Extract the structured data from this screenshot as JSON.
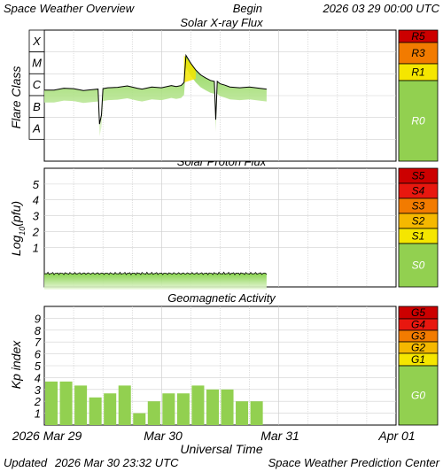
{
  "header": {
    "title": "Space Weather Overview",
    "begin_label": "Begin",
    "begin_value": "2026 03 29 00:00 UTC"
  },
  "footer": {
    "updated_label": "Updated",
    "updated_value": "2026 Mar 30 23:32 UTC",
    "credit": "Space Weather Prediction Center"
  },
  "colors": {
    "extreme": "#cc0000",
    "severe": "#e8170f",
    "strong": "#f27b00",
    "moderate": "#f5b800",
    "minor": "#f5e600",
    "quiet": "#92d050"
  },
  "chart_data": [
    {
      "type": "line",
      "title": "Solar X-ray Flux",
      "ylabel": "Flare Class",
      "y_labels": [
        "X",
        "M",
        "C",
        "B",
        "A"
      ],
      "y_scale": "log",
      "ylim": [
        1e-09,
        0.001
      ],
      "x_time_range": [
        "2026-03-29 00:00",
        "2026-04-01 00:00"
      ],
      "series": [
        {
          "x_hours": [
            0,
            2,
            4,
            6,
            8,
            10,
            11,
            11.3,
            11.7,
            12,
            13,
            15,
            17,
            19,
            20,
            22,
            24,
            26,
            27,
            28,
            28.6,
            29,
            30,
            31,
            32,
            33,
            34,
            34.8,
            35.1,
            35.4,
            36,
            37,
            38,
            40,
            42,
            44,
            45.5
          ],
          "values": [
            1.8e-06,
            1.8e-06,
            2.2e-06,
            2.1e-06,
            1.7e-06,
            1.9e-06,
            2e-06,
            5e-08,
            1.3e-07,
            2.1e-06,
            2.3e-06,
            2.4e-06,
            2.8e-06,
            2.2e-06,
            2e-06,
            2.5e-06,
            2.3e-06,
            2.9e-06,
            2.6e-06,
            2.9e-06,
            4e-06,
            7e-05,
            3e-05,
            1.5e-05,
            9e-06,
            6.5e-06,
            5e-06,
            4.5e-06,
            8e-08,
            4.5e-06,
            3.5e-06,
            3e-06,
            2.5e-06,
            2.3e-06,
            2.5e-06,
            2.2e-06,
            2e-06
          ]
        }
      ],
      "scale": [
        "R5",
        "R3",
        "R1",
        "R0"
      ]
    },
    {
      "type": "line",
      "title": "Solar Proton Flux",
      "ylabel": "Log10(pfu)",
      "ylabel_main": "Log",
      "ylabel_sub": "10",
      "ylabel_tail": "(pfu)",
      "y_ticks": [
        5,
        4,
        3,
        2,
        1
      ],
      "ylim": [
        -1.5,
        6
      ],
      "x_time_range": [
        "2026-03-29 00:00",
        "2026-04-01 00:00"
      ],
      "series": [
        {
          "x_hours": [
            0,
            45.5
          ],
          "values": [
            -0.65,
            -0.65
          ]
        }
      ],
      "scale": [
        "S5",
        "S4",
        "S3",
        "S2",
        "S1",
        "S0"
      ]
    },
    {
      "type": "bar",
      "title": "Geomagnetic Activity",
      "ylabel": "Kp index",
      "y_ticks": [
        9,
        8,
        7,
        6,
        5,
        4,
        3,
        2,
        1
      ],
      "ylim": [
        0,
        10
      ],
      "x_time_range": [
        "2026-03-29 00:00",
        "2026-04-01 00:00"
      ],
      "interval_hours": 3,
      "values": [
        3.67,
        3.67,
        3.33,
        2.33,
        2.67,
        3.33,
        1.0,
        2.0,
        2.67,
        2.67,
        3.33,
        3.0,
        3.0,
        2.0,
        2.0
      ],
      "scale": [
        "G5",
        "G4",
        "G3",
        "G2",
        "G1",
        "G0"
      ]
    }
  ],
  "x_axis": {
    "label": "Universal Time",
    "ticks": [
      "2026 Mar 29",
      "Mar 30",
      "Mar 31",
      "Apr 01"
    ]
  }
}
